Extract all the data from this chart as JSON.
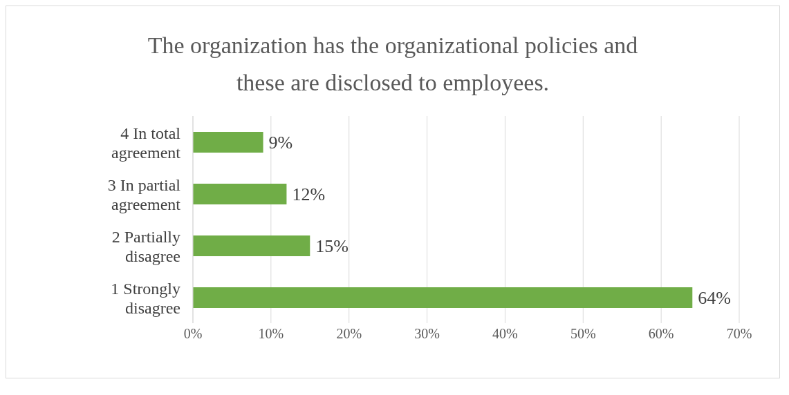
{
  "chart_data": {
    "type": "bar",
    "orientation": "horizontal",
    "title": "The organization has the organizational policies and these are disclosed to employees.",
    "categories": [
      "4 In total agreement",
      "3 In partial agreement",
      "2 Partially disagree",
      "1 Strongly disagree"
    ],
    "values": [
      9,
      12,
      15,
      64
    ],
    "color": "#70ad47",
    "value_labels": [
      "9%",
      "12%",
      "15%",
      "64%"
    ],
    "xlim": [
      0,
      70
    ],
    "xticks": [
      {
        "value": 0,
        "label": "0%"
      },
      {
        "value": 10,
        "label": "10%"
      },
      {
        "value": 20,
        "label": "20%"
      },
      {
        "value": 30,
        "label": "30%"
      },
      {
        "value": 40,
        "label": "40%"
      },
      {
        "value": 50,
        "label": "50%"
      },
      {
        "value": 60,
        "label": "60%"
      },
      {
        "value": 70,
        "label": "70%"
      }
    ],
    "grid": "x",
    "legend": false
  }
}
